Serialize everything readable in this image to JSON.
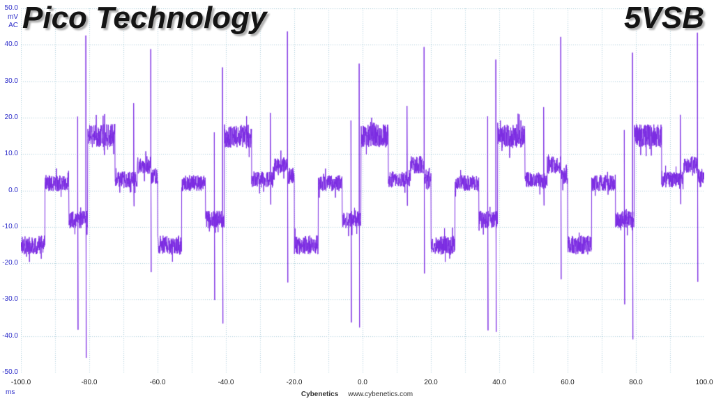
{
  "footer": {
    "brand": "Cybenetics",
    "url": "www.cybenetics.com"
  },
  "colors": {
    "background": "#ffffff",
    "title": "#141414",
    "title_shadow": "#b0b0b0",
    "axis_label_blue": "#2a2ac8",
    "axis_label_dark": "#1c1c1c",
    "footer_text": "#333333",
    "grid": "#a9ced9",
    "trace": "#7b2be2"
  },
  "chart_data": {
    "type": "line",
    "title_left": "Pico Technology",
    "title_right": "5VSB",
    "xlabel": "ms",
    "ylabel": "mV",
    "coupling": "AC",
    "xlim": [
      -100,
      100
    ],
    "ylim": [
      -50,
      50
    ],
    "grid": true,
    "grid_step_x_ms": 10,
    "grid_step_y_mv": 10,
    "legend": "none",
    "x_ticks": [
      {
        "v": -100,
        "label": "-100.0"
      },
      {
        "v": -80,
        "label": "-80.0"
      },
      {
        "v": -60,
        "label": "-60.0"
      },
      {
        "v": -40,
        "label": "-40.0"
      },
      {
        "v": -20,
        "label": "-20.0"
      },
      {
        "v": 0,
        "label": "0.0"
      },
      {
        "v": 20,
        "label": "20.0"
      },
      {
        "v": 40,
        "label": "40.0"
      },
      {
        "v": 60,
        "label": "60.0"
      },
      {
        "v": 80,
        "label": "80.0"
      },
      {
        "v": 100,
        "label": "100.0"
      }
    ],
    "y_ticks": [
      {
        "v": 50,
        "label": "50.0"
      },
      {
        "v": 40,
        "label": "40.0"
      },
      {
        "v": 30,
        "label": "30.0"
      },
      {
        "v": 20,
        "label": "20.0"
      },
      {
        "v": 10,
        "label": "10.0"
      },
      {
        "v": 0,
        "label": "0.0"
      },
      {
        "v": -10,
        "label": "-10.0"
      },
      {
        "v": -20,
        "label": "-20.0"
      },
      {
        "v": -30,
        "label": "-30.0"
      },
      {
        "v": -40,
        "label": "-40.0"
      },
      {
        "v": -50,
        "label": "-50.0"
      }
    ],
    "waveform": {
      "description": "5VSB AC-coupled ripple trace, periodic stepped noise bands with bipolar switching spikes",
      "period_ms": 40,
      "base_noise_mv": 2.2,
      "segments": [
        {
          "t0": 0,
          "t1": 7,
          "level": -15,
          "noise": 2.6
        },
        {
          "t0": 7,
          "t1": 14,
          "level": 2,
          "noise": 2.2
        },
        {
          "t0": 14,
          "t1": 19.5,
          "level": -8,
          "noise": 2.4
        },
        {
          "t0": 19.5,
          "t1": 27.5,
          "level": 15,
          "noise": 3.2
        },
        {
          "t0": 27.5,
          "t1": 34,
          "level": 3,
          "noise": 2.2
        },
        {
          "t0": 34,
          "t1": 38,
          "level": 7,
          "noise": 2.4
        },
        {
          "t0": 38,
          "t1": 40,
          "level": 4,
          "noise": 2.2
        }
      ],
      "spikes": [
        {
          "t": 16.6,
          "peak1": 18,
          "peak2": -34
        },
        {
          "t": 19.0,
          "peak1": 37,
          "peak2": -40
        },
        {
          "t": 33.0,
          "peak1": 22,
          "peak2": -4
        },
        {
          "t": 38.0,
          "peak1": 38,
          "peak2": -22
        }
      ]
    }
  }
}
